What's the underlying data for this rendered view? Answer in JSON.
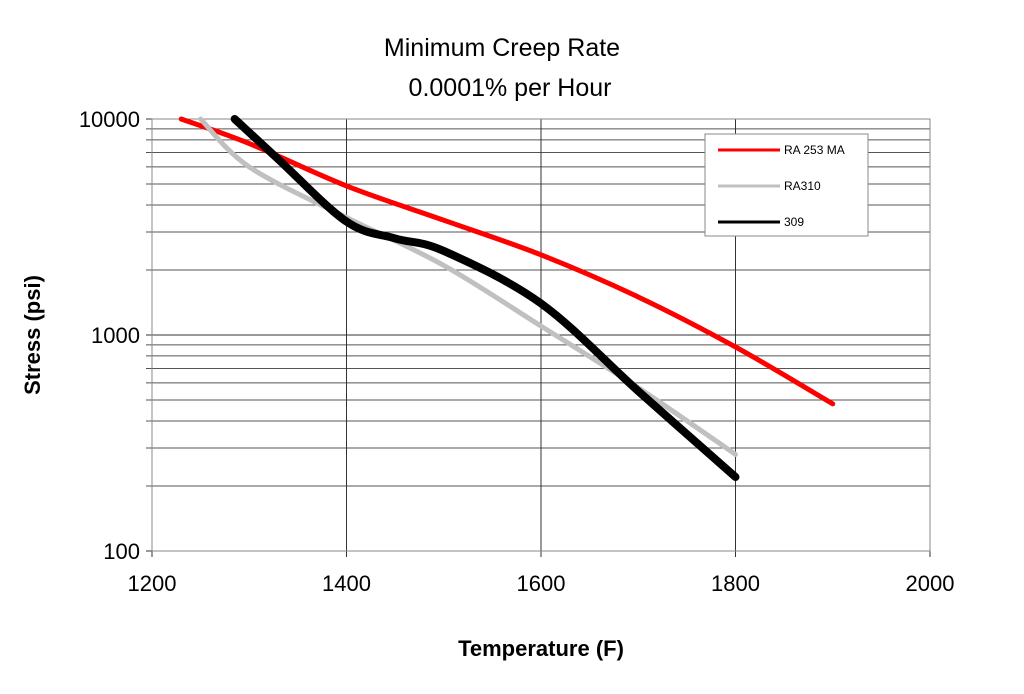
{
  "chart_data": {
    "type": "line",
    "title": "Minimum Creep Rate",
    "subtitle": "0.0001% per Hour",
    "xlabel": "Temperature (F)",
    "ylabel": "Stress (psi)",
    "xlim": [
      1200,
      2000
    ],
    "ylim": [
      100,
      10000
    ],
    "yscale": "log",
    "x_ticks": [
      1200,
      1400,
      1600,
      1800,
      2000
    ],
    "y_ticks": [
      100,
      1000,
      10000
    ],
    "grid": true,
    "legend_position": "top-right",
    "series": [
      {
        "name": "RA 253 MA",
        "color": "#ff0000",
        "points": [
          [
            1230,
            10000
          ],
          [
            1300,
            7700
          ],
          [
            1400,
            4900
          ],
          [
            1500,
            3400
          ],
          [
            1600,
            2350
          ],
          [
            1700,
            1500
          ],
          [
            1800,
            880
          ],
          [
            1900,
            480
          ]
        ]
      },
      {
        "name": "RA310",
        "color": "#c0c0c0",
        "points": [
          [
            1250,
            10000
          ],
          [
            1300,
            6000
          ],
          [
            1400,
            3500
          ],
          [
            1500,
            2100
          ],
          [
            1600,
            1100
          ],
          [
            1700,
            570
          ],
          [
            1800,
            280
          ]
        ]
      },
      {
        "name": "309",
        "color": "#000000",
        "points": [
          [
            1285,
            10000
          ],
          [
            1330,
            6500
          ],
          [
            1400,
            3350
          ],
          [
            1450,
            2800
          ],
          [
            1500,
            2450
          ],
          [
            1600,
            1400
          ],
          [
            1700,
            550
          ],
          [
            1800,
            220
          ]
        ]
      }
    ]
  }
}
